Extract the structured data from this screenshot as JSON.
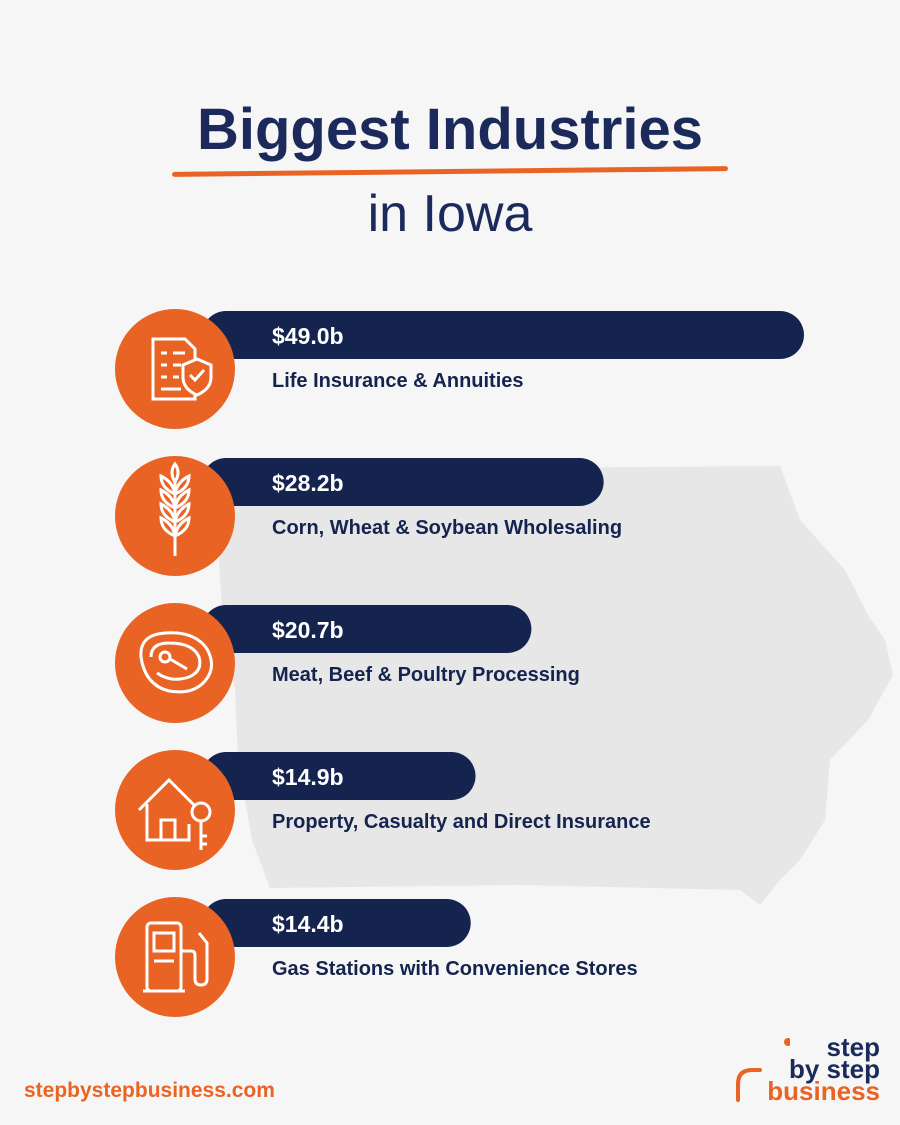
{
  "title": {
    "line1": "Biggest Industries",
    "line2": "in Iowa"
  },
  "colors": {
    "navy": "#15244f",
    "orange": "#e96424",
    "background": "#f6f6f6",
    "map": "#e7e7e7"
  },
  "chart_data": {
    "type": "bar",
    "orientation": "horizontal",
    "unit": "$ billions",
    "categories": [
      "Life Insurance & Annuities",
      "Corn, Wheat & Soybean Wholesaling",
      "Meat, Beef & Poultry Processing",
      "Property, Casualty and Direct Insurance",
      "Gas Stations with Convenience Stores"
    ],
    "values": [
      49.0,
      28.2,
      20.7,
      14.9,
      14.4
    ],
    "labels": [
      "$49.0b",
      "$28.2b",
      "$20.7b",
      "$14.9b",
      "$14.4b"
    ],
    "icons": [
      "insurance-document-shield-icon",
      "wheat-icon",
      "steak-icon",
      "house-key-icon",
      "fuel-pump-icon"
    ]
  },
  "footer": {
    "url": "stepbystepbusiness.com"
  },
  "logo": {
    "line1": "step",
    "line2": "by step",
    "line3": "business"
  }
}
